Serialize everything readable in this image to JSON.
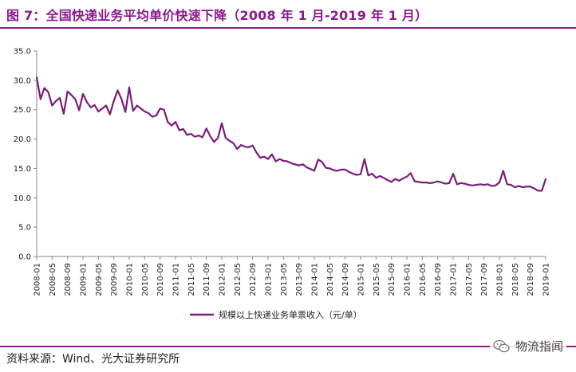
{
  "figure_title": "图 7：全国快递业务平均单价快速下降（2008 年 1 月-2019 年 1 月）",
  "source_note": "资料来源：Wind、光大证券研究所",
  "watermark": {
    "text": "物流指闻",
    "icon": "wechat-icon"
  },
  "colors": {
    "accent": "#8b1a8b",
    "line": "#7a1c7a",
    "axis": "#888888",
    "text": "#222222"
  },
  "chart_data": {
    "type": "line",
    "ylim": [
      0,
      35
    ],
    "ytick_labels": [
      "0.0",
      "5.0",
      "10.0",
      "15.0",
      "20.0",
      "25.0",
      "30.0",
      "35.0"
    ],
    "yticks": [
      0,
      5,
      10,
      15,
      20,
      25,
      30,
      35
    ],
    "grid": false,
    "legend_position": "bottom-center",
    "x": [
      "2008-01",
      "2008-02",
      "2008-03",
      "2008-04",
      "2008-05",
      "2008-06",
      "2008-07",
      "2008-08",
      "2008-09",
      "2008-10",
      "2008-11",
      "2008-12",
      "2009-01",
      "2009-02",
      "2009-03",
      "2009-04",
      "2009-05",
      "2009-06",
      "2009-07",
      "2009-08",
      "2009-09",
      "2009-10",
      "2009-11",
      "2009-12",
      "2010-01",
      "2010-02",
      "2010-03",
      "2010-04",
      "2010-05",
      "2010-06",
      "2010-07",
      "2010-08",
      "2010-09",
      "2010-10",
      "2010-11",
      "2010-12",
      "2011-01",
      "2011-02",
      "2011-03",
      "2011-04",
      "2011-05",
      "2011-06",
      "2011-07",
      "2011-08",
      "2011-09",
      "2011-10",
      "2011-11",
      "2011-12",
      "2012-01",
      "2012-02",
      "2012-03",
      "2012-04",
      "2012-05",
      "2012-06",
      "2012-07",
      "2012-08",
      "2012-09",
      "2012-10",
      "2012-11",
      "2012-12",
      "2013-01",
      "2013-02",
      "2013-03",
      "2013-04",
      "2013-05",
      "2013-06",
      "2013-07",
      "2013-08",
      "2013-09",
      "2013-10",
      "2013-11",
      "2013-12",
      "2014-01",
      "2014-02",
      "2014-03",
      "2014-04",
      "2014-05",
      "2014-06",
      "2014-07",
      "2014-08",
      "2014-09",
      "2014-10",
      "2014-11",
      "2014-12",
      "2015-01",
      "2015-02",
      "2015-03",
      "2015-04",
      "2015-05",
      "2015-06",
      "2015-07",
      "2015-08",
      "2015-09",
      "2015-10",
      "2015-11",
      "2015-12",
      "2016-01",
      "2016-02",
      "2016-03",
      "2016-04",
      "2016-05",
      "2016-06",
      "2016-07",
      "2016-08",
      "2016-09",
      "2016-10",
      "2016-11",
      "2016-12",
      "2017-01",
      "2017-02",
      "2017-03",
      "2017-04",
      "2017-05",
      "2017-06",
      "2017-07",
      "2017-08",
      "2017-09",
      "2017-10",
      "2017-11",
      "2017-12",
      "2018-01",
      "2018-02",
      "2018-03",
      "2018-04",
      "2018-05",
      "2018-06",
      "2018-07",
      "2018-08",
      "2018-09",
      "2018-10",
      "2018-11",
      "2018-12",
      "2019-01"
    ],
    "xtick_labels": [
      "2008-01",
      "2008-05",
      "2008-09",
      "2009-01",
      "2009-05",
      "2009-09",
      "2010-01",
      "2010-05",
      "2010-09",
      "2011-01",
      "2011-05",
      "2011-09",
      "2012-01",
      "2012-05",
      "2012-09",
      "2013-01",
      "2013-05",
      "2013-09",
      "2014-01",
      "2014-05",
      "2014-09",
      "2015-01",
      "2015-05",
      "2015-09",
      "2016-01",
      "2016-05",
      "2016-09",
      "2017-01",
      "2017-05",
      "2017-09",
      "2018-01",
      "2018-05",
      "2018-09",
      "2019-01"
    ],
    "series": [
      {
        "name": "规模以上快递业务单票收入（元/单）",
        "values": [
          30.5,
          26.8,
          28.7,
          28.0,
          25.7,
          26.5,
          27.0,
          24.3,
          28.1,
          27.5,
          26.8,
          24.9,
          27.7,
          26.3,
          25.4,
          25.8,
          24.7,
          25.2,
          25.7,
          24.2,
          26.5,
          28.3,
          26.8,
          24.6,
          28.8,
          24.8,
          25.7,
          25.2,
          24.7,
          24.4,
          23.8,
          24.0,
          25.2,
          25.0,
          22.9,
          22.3,
          22.9,
          21.5,
          21.7,
          20.7,
          20.9,
          20.4,
          20.6,
          20.3,
          21.8,
          20.5,
          19.5,
          20.2,
          22.7,
          20.2,
          19.7,
          19.3,
          18.3,
          19.0,
          18.7,
          18.6,
          18.9,
          17.7,
          16.8,
          17.0,
          16.6,
          17.4,
          16.2,
          16.6,
          16.3,
          16.2,
          15.9,
          15.7,
          15.5,
          15.7,
          15.2,
          14.9,
          14.6,
          16.5,
          16.1,
          15.1,
          15.0,
          14.7,
          14.6,
          14.8,
          14.8,
          14.4,
          14.1,
          13.9,
          14.0,
          16.6,
          13.8,
          14.1,
          13.4,
          13.7,
          13.4,
          13.0,
          12.7,
          13.2,
          12.9,
          13.3,
          13.6,
          14.2,
          12.8,
          12.7,
          12.6,
          12.6,
          12.5,
          12.6,
          12.8,
          12.6,
          12.4,
          12.5,
          14.1,
          12.3,
          12.5,
          12.4,
          12.2,
          12.1,
          12.2,
          12.3,
          12.2,
          12.3,
          12.0,
          12.1,
          12.6,
          14.6,
          12.3,
          12.2,
          11.8,
          12.0,
          11.8,
          11.9,
          11.9,
          11.6,
          11.2,
          11.2,
          13.2
        ]
      }
    ]
  }
}
